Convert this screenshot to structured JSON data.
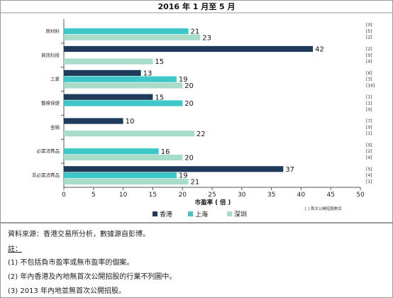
{
  "chart_data": {
    "type": "bar",
    "orientation": "horizontal",
    "title": "2016 年 1 月至 5 月",
    "xlabel": "市盈率 ( 倍 )",
    "ylabel": "",
    "xlim": [
      0,
      50
    ],
    "xticks": [
      0,
      5,
      10,
      15,
      20,
      25,
      30,
      35,
      40,
      45,
      50
    ],
    "grid": false,
    "legend_position": "bottom",
    "categories": [
      "原材料",
      "資訊科技",
      "工業",
      "醫療保健",
      "金融",
      "必需消費品",
      "非必需消費品"
    ],
    "series": [
      {
        "name": "香港",
        "color": "#1f3b5c",
        "values": [
          null,
          42,
          13,
          15,
          10,
          null,
          37
        ]
      },
      {
        "name": "上海",
        "color": "#3ec7c9",
        "values": [
          21,
          null,
          19,
          20,
          null,
          16,
          19
        ]
      },
      {
        "name": "深圳",
        "color": "#a8dcc8",
        "values": [
          23,
          15,
          20,
          null,
          22,
          20,
          21
        ]
      }
    ],
    "ipo_counts": [
      [
        "[0]",
        "[5]",
        "[2]"
      ],
      [
        "[2]",
        "[0]",
        "[4]"
      ],
      [
        "[6]",
        "[3]",
        "[16]"
      ],
      [
        "[1]",
        "[1]",
        "[0]"
      ],
      [
        "[7]",
        "[0]",
        "[1]"
      ],
      [
        "[0]",
        "[2]",
        "[4]"
      ],
      [
        "[5]",
        "[4]",
        "[1]"
      ]
    ],
    "ipo_note": "[ ] 首次公開招股數目"
  },
  "notes": {
    "source": "資料來源：香港交易所分析，數據源自彭博。",
    "heading": "註：",
    "items": [
      "(1)  不包括負市盈率或無市盈率的個案。",
      "(2)  年內香港及內地無首次公開招股的行業不列圖中。",
      "(3) 2013 年內地並無首次公開招股。"
    ]
  }
}
